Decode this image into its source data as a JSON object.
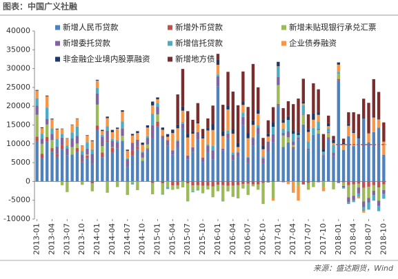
{
  "header": "图表：中国广义社融",
  "source": "来源：盛达期货，Wind",
  "chart_data": {
    "type": "bar",
    "stacked": true,
    "categories": [
      "2013-01",
      null,
      null,
      "2013-04",
      null,
      null,
      "2013-07",
      null,
      null,
      "2013-10",
      null,
      null,
      "2014-01",
      null,
      null,
      "2014-04",
      null,
      null,
      "2014-07",
      null,
      null,
      "2014-10",
      null,
      null,
      "2015-01",
      null,
      null,
      "2015-04",
      null,
      null,
      "2015-07",
      null,
      null,
      "2015-10",
      null,
      null,
      "2016-01",
      null,
      null,
      "2016-04",
      null,
      null,
      "2016-07",
      null,
      null,
      "2016-10",
      null,
      null,
      "2017-01",
      null,
      null,
      "2017-04",
      null,
      null,
      "2017-07",
      null,
      null,
      "2017-10",
      null,
      null,
      "2018-01",
      null,
      null,
      "2018-04",
      null,
      null,
      "2018-07",
      null,
      null,
      "2018-10"
    ],
    "ylim": [
      -10000,
      40000
    ],
    "yticks": [
      -10000,
      -5000,
      0,
      5000,
      10000,
      15000,
      20000,
      25000,
      30000,
      35000,
      40000
    ],
    "reference_line": {
      "value": 9800,
      "color": "#c0504d",
      "x": [
        "2018-01",
        "2018-10"
      ]
    },
    "series": [
      {
        "name": "新增人民币贷款",
        "color": "#4f81bd",
        "values": [
          10721,
          6200,
          10625,
          7926,
          6671,
          8608,
          6999,
          7128,
          7870,
          5064,
          6249,
          4825,
          13721,
          6448,
          10497,
          7747,
          8708,
          10794,
          3852,
          7025,
          8572,
          5483,
          8527,
          11434,
          14708,
          11437,
          9571,
          7075,
          9141,
          14108,
          5891,
          7891,
          11128,
          5053,
          7851,
          5878,
          25326,
          8183,
          11443,
          5695,
          6656,
          15036,
          4908,
          9534,
          12622,
          4671,
          7952,
          10445,
          20300,
          9199,
          10233,
          8860,
          11135,
          15104,
          8255,
          12400,
          12700,
          6900,
          11400,
          6700,
          26850,
          8380,
          12000,
          9400,
          11500,
          16700,
          10400,
          13100,
          14300,
          7100
        ]
      },
      {
        "name": "新增外币贷款",
        "color": "#c0504d",
        "values": [
          1184,
          1170,
          1223,
          929,
          669,
          1144,
          -123,
          -20,
          1000,
          250,
          600,
          -520,
          1160,
          1260,
          545,
          1260,
          4,
          30,
          -84,
          1220,
          700,
          40,
          300,
          -420,
          1187,
          -500,
          14,
          -1027,
          -1006,
          -1,
          -477,
          -1048,
          -1000,
          -1148,
          -1129,
          -1299,
          -903,
          -1000,
          -1148,
          -1100,
          -1000,
          -700,
          -600,
          -800,
          -800,
          -400,
          -200,
          -100,
          300,
          -200,
          100,
          300,
          -100,
          -800,
          -400,
          -100,
          -200,
          200,
          300,
          -100,
          400,
          -200,
          -1000,
          -800,
          -600,
          -1700,
          -1400,
          -1000,
          -1600,
          -800
        ]
      },
      {
        "name": "新增未贴现银行承兑汇票",
        "color": "#9bbb59",
        "values": [
          5818,
          2624,
          3284,
          2151,
          -161,
          -1000,
          -2700,
          2000,
          1200,
          -900,
          300,
          -2100,
          5548,
          1700,
          -3000,
          100,
          -1500,
          1300,
          -3500,
          -400,
          -2200,
          800,
          1000,
          -3000,
          1946,
          -2800,
          -1500,
          -1200,
          -1000,
          -1600,
          -4800,
          -1600,
          -1200,
          -2000,
          -1000,
          -2900,
          -1700,
          -4100,
          -1500,
          -3000,
          -3500,
          -1200,
          -3000,
          -500,
          -1400,
          -5600,
          -100,
          -4400,
          5000,
          3000,
          1400,
          500,
          -1000,
          2600,
          -1800,
          -1400,
          1000,
          -1500,
          1200,
          -2000,
          1400,
          -1000,
          -3200,
          -3000,
          -1000,
          -3600,
          -3000,
          -1500,
          -3500,
          -1500
        ]
      },
      {
        "name": "新增委托贷款",
        "color": "#8064a2",
        "values": [
          2400,
          1400,
          1500,
          1600,
          1900,
          1900,
          1800,
          2300,
          2000,
          1800,
          1600,
          2500,
          2900,
          2500,
          2400,
          1700,
          1700,
          2000,
          2000,
          2000,
          1800,
          1400,
          1700,
          3500,
          2000,
          700,
          1400,
          1200,
          1600,
          1200,
          1000,
          1200,
          2000,
          1300,
          1700,
          2400,
          2600,
          500,
          1300,
          1400,
          1000,
          2100,
          1300,
          2000,
          1700,
          1500,
          2600,
          2100,
          2200,
          700,
          1600,
          1000,
          600,
          200,
          500,
          0,
          300,
          100,
          200,
          1000,
          -400,
          -400,
          -1300,
          -1200,
          -1600,
          -1500,
          -1200,
          -1100,
          -1400,
          -1000
        ]
      },
      {
        "name": "新增信托贷款",
        "color": "#4bacc6",
        "values": [
          2000,
          1300,
          3000,
          1500,
          2000,
          1000,
          700,
          1600,
          2500,
          1000,
          1700,
          1200,
          1600,
          500,
          1200,
          500,
          600,
          1800,
          300,
          -400,
          -100,
          200,
          500,
          3000,
          1000,
          -200,
          -500,
          100,
          300,
          500,
          -50,
          -200,
          -200,
          0,
          300,
          1200,
          500,
          -200,
          700,
          600,
          200,
          1200,
          300,
          300,
          700,
          400,
          200,
          2000,
          2700,
          1100,
          3000,
          2000,
          600,
          2400,
          1900,
          1800,
          1900,
          700,
          1000,
          2000,
          500,
          -300,
          -500,
          -500,
          -900,
          -1000,
          -1900,
          -1500,
          -1400,
          -1300
        ]
      },
      {
        "name": "企业债券融资",
        "color": "#f79646",
        "values": [
          2000,
          1500,
          3000,
          2400,
          2600,
          1300,
          1900,
          2000,
          2100,
          1300,
          1800,
          2200,
          1900,
          1000,
          2200,
          1800,
          3000,
          2600,
          2000,
          2000,
          1800,
          1800,
          2300,
          2300,
          1000,
          1600,
          900,
          4500,
          3100,
          3000,
          4800,
          3600,
          2300,
          5100,
          3700,
          4200,
          2600,
          3400,
          5700,
          5000,
          1300,
          2000,
          5000,
          3200,
          3000,
          2000,
          1200,
          -600,
          100,
          1600,
          -700,
          -3000,
          -4000,
          400,
          2500,
          2200,
          1800,
          -1100,
          600,
          500,
          1900,
          1500,
          2800,
          3500,
          -400,
          -500,
          2400,
          3900,
          2200,
          3500
        ]
      },
      {
        "name": "非金融企业境内股票融资",
        "color": "#1f3864",
        "values": [
          200,
          200,
          200,
          200,
          200,
          100,
          100,
          100,
          100,
          100,
          100,
          200,
          200,
          300,
          400,
          600,
          300,
          400,
          300,
          400,
          500,
          600,
          600,
          1000,
          500,
          600,
          700,
          900,
          1000,
          1100,
          1000,
          700,
          400,
          500,
          700,
          1500,
          1400,
          1300,
          1000,
          1200,
          1100,
          900,
          1300,
          1200,
          1000,
          1000,
          800,
          1200,
          1200,
          900,
          1000,
          900,
          700,
          600,
          700,
          1700,
          800,
          700,
          800,
          900,
          600,
          500,
          600,
          500,
          400,
          300,
          100,
          200,
          300,
          100
        ]
      },
      {
        "name": "新增地方债",
        "color": "#7b2c2c",
        "values": [
          null,
          null,
          null,
          null,
          null,
          null,
          null,
          null,
          null,
          null,
          null,
          null,
          null,
          null,
          null,
          null,
          null,
          null,
          null,
          null,
          null,
          null,
          null,
          null,
          null,
          null,
          null,
          0,
          8000,
          10000,
          6000,
          3000,
          5000,
          2000,
          2500,
          5000,
          1500,
          7000,
          9000,
          10000,
          10000,
          8000,
          7000,
          15000,
          6000,
          2000,
          3500,
          4000,
          0,
          3000,
          4000,
          7000,
          9000,
          6000,
          4000,
          8000,
          6000,
          4000,
          2000,
          1000,
          0,
          1000,
          3000,
          5000,
          6000,
          5000,
          8000,
          10000,
          7000,
          5000
        ]
      }
    ]
  }
}
